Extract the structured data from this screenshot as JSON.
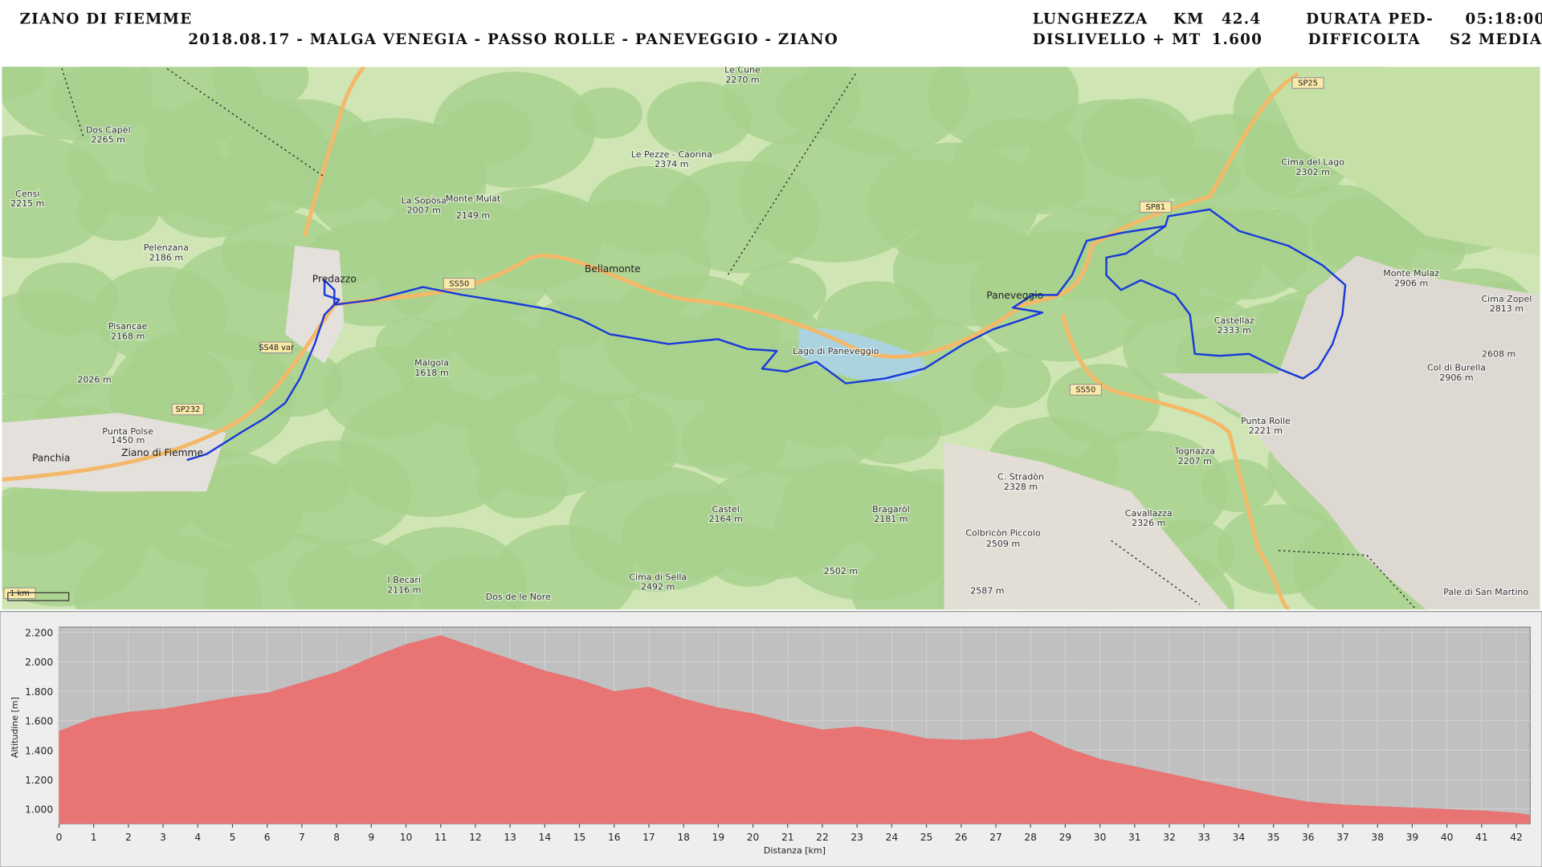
{
  "header": {
    "title": "ZIANO DI FIEMME",
    "route": "2018.08.17 - MALGA VENEGIA - PASSO ROLLE - PANEVEGGIO - ZIANO",
    "length_label": "LUNGHEZZA",
    "length_unit": "KM",
    "length": "42.4",
    "duration_label": "DURATA PED-",
    "duration": "05:18:00",
    "elevation_gain_label": "DISLIVELLO + MT",
    "elevation_gain": "1.600",
    "difficulty_label": "DIFFICOLTA",
    "difficulty": "S2 MEDIA"
  },
  "map": {
    "labels": [
      "Predazzo",
      "Bellamonte",
      "Paneveggio",
      "Panchia",
      "Ziano di Fiemme",
      "Castellaz",
      "2333 m",
      "Malgola",
      "1618 m",
      "Dos Capèl",
      "2265 m",
      "Censi",
      "2215 m",
      "Pelenzana",
      "2186 m",
      "Pisancae",
      "2168 m",
      "Punta Polse",
      "1450 m",
      "Le Pezze - Caorina",
      "2374 m",
      "La Sopòsa",
      "2007 m",
      "Monte Mulat",
      "2149 m",
      "Le Cune",
      "2270 m",
      "Cima del Lago",
      "2302 m",
      "Monte Mulaz",
      "2906 m",
      "Cima Zopel",
      "2813 m",
      "Col di Burella",
      "2906 m",
      "Punta Rolle",
      "2221 m",
      "Tognazza",
      "2207 m",
      "C. Stradòn",
      "2328 m",
      "Cavallazza",
      "2326 m",
      "Colbricòn Piccolo",
      "2509 m",
      "Castel",
      "2164 m",
      "Bragaròl",
      "2181 m",
      "Cima di Sella",
      "2492 m",
      "I Becari",
      "2116 m",
      "Dos de le Nore",
      "Pale di San Martino",
      "Lago di Paneveggio",
      "SS50",
      "SS48 var",
      "SP232",
      "SP81",
      "SP25",
      "SS50",
      "1 km",
      "2026 m",
      "2608 m",
      "2502 m",
      "2587 m"
    ]
  },
  "chart_data": {
    "type": "area",
    "y_label": "Altitudine [m]",
    "x_label": "Distanza [km]",
    "color": "#e87474",
    "x": [
      0,
      1,
      2,
      3,
      4,
      5,
      6,
      7,
      8,
      9,
      10,
      11,
      12,
      13,
      14,
      15,
      16,
      17,
      18,
      19,
      20,
      21,
      22,
      23,
      24,
      25,
      26,
      27,
      28,
      29,
      30,
      31,
      32,
      33,
      34,
      35,
      36,
      37,
      38,
      39,
      40,
      41,
      42,
      42.4
    ],
    "values": [
      1530,
      1620,
      1660,
      1680,
      1720,
      1760,
      1790,
      1860,
      1930,
      2030,
      2120,
      2180,
      2100,
      2020,
      1940,
      1880,
      1800,
      1830,
      1750,
      1690,
      1650,
      1590,
      1540,
      1560,
      1530,
      1480,
      1470,
      1480,
      1530,
      1420,
      1340,
      1290,
      1240,
      1190,
      1140,
      1090,
      1050,
      1030,
      1020,
      1010,
      1000,
      990,
      975,
      960
    ],
    "xlim": [
      0,
      42.4
    ],
    "ylim": [
      900,
      2235
    ],
    "xticks": [
      0,
      1,
      2,
      3,
      4,
      5,
      6,
      7,
      8,
      9,
      10,
      11,
      12,
      13,
      14,
      15,
      16,
      17,
      18,
      19,
      20,
      21,
      22,
      23,
      24,
      25,
      26,
      27,
      28,
      29,
      30,
      31,
      32,
      33,
      34,
      35,
      36,
      37,
      38,
      39,
      40,
      41,
      42
    ],
    "yticks": [
      {
        "value": 1000,
        "label": "1.000"
      },
      {
        "value": 1200,
        "label": "1.200"
      },
      {
        "value": 1400,
        "label": "1.400"
      },
      {
        "value": 1600,
        "label": "1.600"
      },
      {
        "value": 1800,
        "label": "1.800"
      },
      {
        "value": 2000,
        "label": "2.000"
      },
      {
        "value": 2200,
        "label": "2.200"
      }
    ],
    "grid": true,
    "plot_background": "#c0c0c0"
  }
}
